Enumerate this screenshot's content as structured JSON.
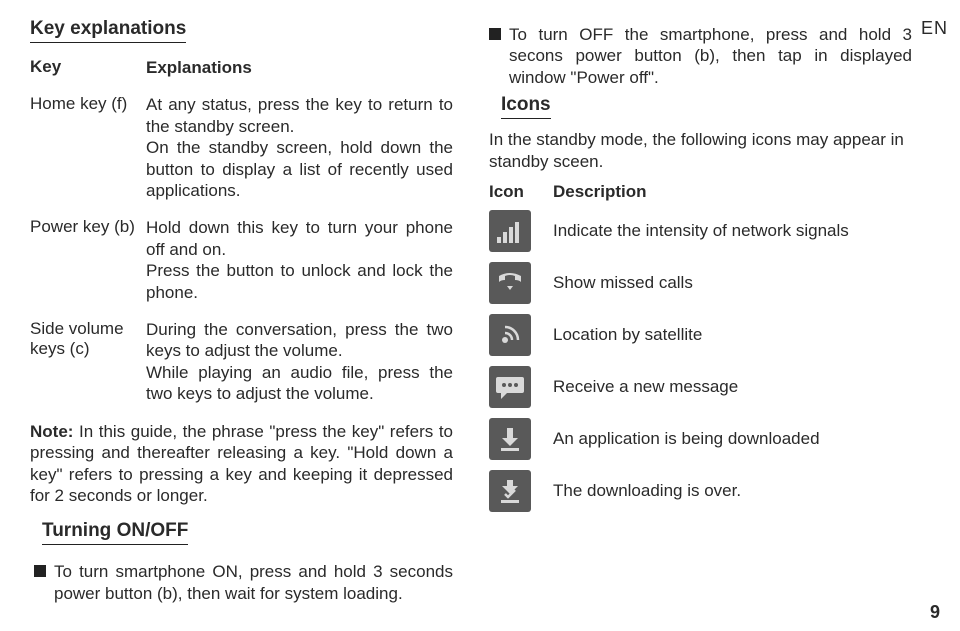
{
  "left": {
    "title": "Key explanations",
    "header_key": "Key",
    "header_val": "Explanations",
    "rows": [
      {
        "key": "Home key (f)",
        "val": "At any status, press the key to return to the standby screen.\nOn the standby screen, hold down the button to display a list of recently used applications."
      },
      {
        "key": "Power key (b)",
        "val": "Hold down this key to turn your phone off and on.\nPress the button to unlock and lock the phone."
      },
      {
        "key": "Side volume keys (c)",
        "val": "During the conversation, press the two keys to adjust the volume.\nWhile playing an audio file, press the two keys to adjust the volume."
      }
    ],
    "note_start": "Note: ",
    "note_body": "In this guide, the phrase \"press the key\" refers to pressing and thereafter releasing a key. \"Hold down a key\" refers to pressing a key and keeping it depressed for 2 seconds or longer.",
    "turning_title": "Turning ON/OFF",
    "turn_on": "To turn smartphone ON, press and hold 3 seconds power button (b), then wait for system loading."
  },
  "right": {
    "turn_off": "To turn OFF the smartphone, press and hold 3 secons power button (b), then tap in displayed window \"Power off\".",
    "icons_title": "Icons",
    "icons_intro": "In the standby mode, the following icons may appear in standby sceen.",
    "th_icon": "Icon",
    "th_desc": "Description",
    "rows": [
      {
        "name": "signal-icon",
        "desc": "Indicate the intensity of network signals"
      },
      {
        "name": "missed-call-icon",
        "desc": "Show missed calls"
      },
      {
        "name": "satellite-icon",
        "desc": "Location by satellite"
      },
      {
        "name": "message-icon",
        "desc": "Receive a new message"
      },
      {
        "name": "download-icon",
        "desc": "An application is being downloaded"
      },
      {
        "name": "download-done-icon",
        "desc": "The downloading is over."
      }
    ]
  },
  "lang_tag": "EN",
  "page_number": "9"
}
